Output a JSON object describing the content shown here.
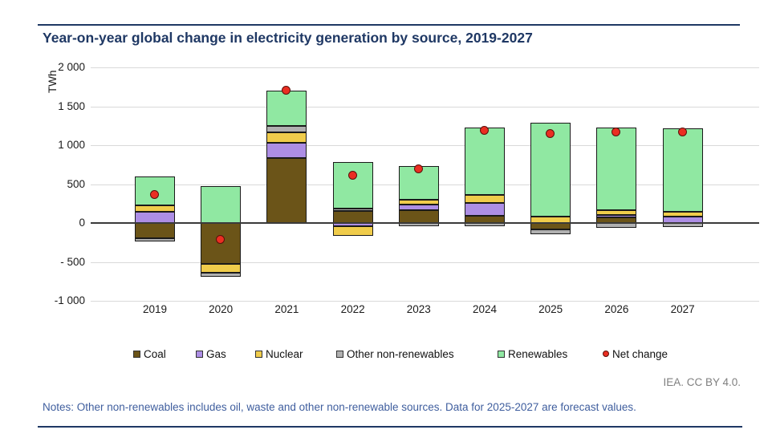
{
  "header": {
    "title": "Year-on-year global change in electricity generation by source, 2019-2027"
  },
  "chart_data": {
    "type": "bar",
    "stacked": true,
    "unit_label": "TWh",
    "categories": [
      "2019",
      "2020",
      "2021",
      "2022",
      "2023",
      "2024",
      "2025",
      "2026",
      "2027"
    ],
    "series": [
      {
        "name": "Coal",
        "color": "#6b5418",
        "values": [
          -200,
          -530,
          840,
          150,
          170,
          90,
          -85,
          70,
          0
        ]
      },
      {
        "name": "Gas",
        "color": "#ad8ee5",
        "values": [
          145,
          0,
          190,
          -40,
          65,
          165,
          0,
          30,
          85
        ]
      },
      {
        "name": "Nuclear",
        "color": "#f0cc4b",
        "values": [
          80,
          -105,
          135,
          -130,
          60,
          105,
          80,
          60,
          60
        ]
      },
      {
        "name": "Other non-renewables",
        "color": "#b0b0b0",
        "values": [
          -35,
          -60,
          85,
          40,
          -40,
          -40,
          -60,
          -60,
          -55
        ]
      },
      {
        "name": "Renewables",
        "color": "#90e8a2",
        "values": [
          375,
          475,
          450,
          590,
          435,
          870,
          1205,
          1065,
          1075
        ]
      }
    ],
    "net_change": {
      "name": "Net change",
      "color": "#ea2e22",
      "values": [
        365,
        -220,
        1700,
        610,
        690,
        1190,
        1140,
        1165,
        1165
      ]
    },
    "y_ticks": [
      {
        "label": "2 000",
        "value": 2000
      },
      {
        "label": "1 500",
        "value": 1500
      },
      {
        "label": "1 000",
        "value": 1000
      },
      {
        "label": "500",
        "value": 500
      },
      {
        "label": "0",
        "value": 0
      },
      {
        "label": "- 500",
        "value": -500
      },
      {
        "label": "-1 000",
        "value": -1000
      }
    ],
    "ylim": [
      -1000,
      2000
    ],
    "grid": true,
    "legend_position": "bottom"
  },
  "footer": {
    "credit": "IEA. CC BY 4.0.",
    "notes": "Notes: Other non-renewables includes oil, waste and other non-renewable sources. Data for 2025-2027 are forecast values."
  },
  "colors": {
    "accent_navy": "#1f3864",
    "notes_blue": "#3f5e9e",
    "credit_gray": "#7f7f7f",
    "grid": "#d9d9d9",
    "axis": "#3a3a3a",
    "bar_border": "#1a1a1a"
  }
}
